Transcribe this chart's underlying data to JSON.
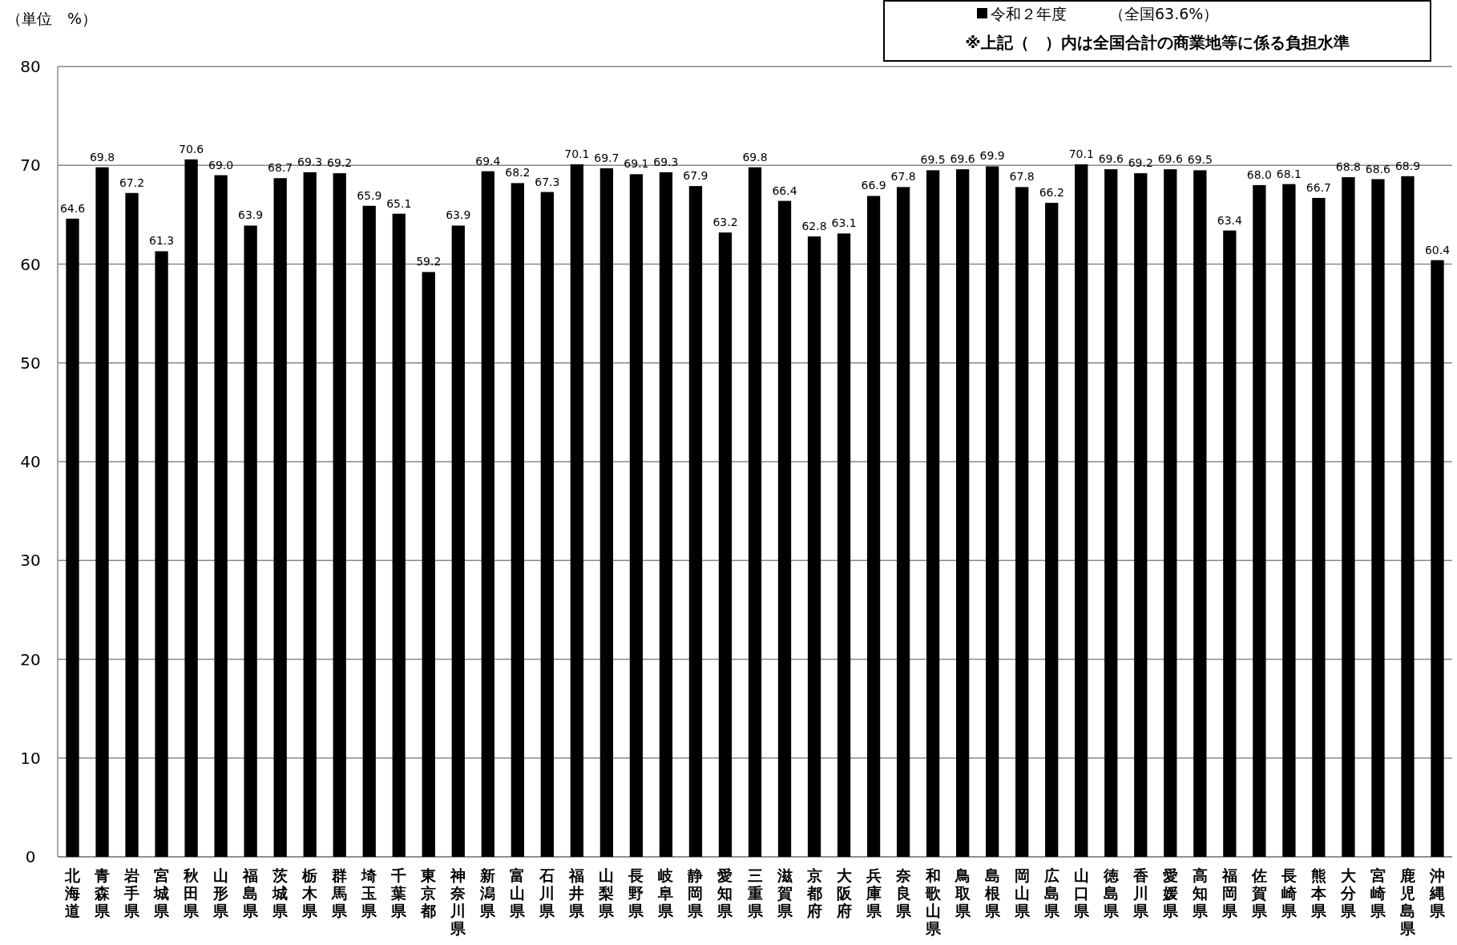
{
  "chart_data": {
    "type": "bar",
    "ylabel": "（単位　%）",
    "categories": [
      "北海道",
      "青森県",
      "岩手県",
      "宮城県",
      "秋田県",
      "山形県",
      "福島県",
      "茨城県",
      "栃木県",
      "群馬県",
      "埼玉県",
      "千葉県",
      "東京都",
      "神奈川県",
      "新潟県",
      "富山県",
      "石川県",
      "福井県",
      "山梨県",
      "長野県",
      "岐阜県",
      "静岡県",
      "愛知県",
      "三重県",
      "滋賀県",
      "京都府",
      "大阪府",
      "兵庫県",
      "奈良県",
      "和歌山県",
      "鳥取県",
      "島根県",
      "岡山県",
      "広島県",
      "山口県",
      "徳島県",
      "香川県",
      "愛媛県",
      "高知県",
      "福岡県",
      "佐賀県",
      "長崎県",
      "熊本県",
      "大分県",
      "宮崎県",
      "鹿児島県",
      "沖縄県"
    ],
    "series": [
      {
        "name": "令和２年度",
        "color": "#000000",
        "values": [
          64.6,
          69.8,
          67.2,
          61.3,
          70.6,
          69.0,
          63.9,
          68.7,
          69.3,
          69.2,
          65.9,
          65.1,
          59.2,
          63.9,
          69.4,
          68.2,
          67.3,
          70.1,
          69.7,
          69.1,
          69.3,
          67.9,
          63.2,
          69.8,
          66.4,
          62.8,
          63.1,
          66.9,
          67.8,
          69.5,
          69.6,
          69.9,
          67.8,
          66.2,
          70.1,
          69.6,
          69.2,
          69.6,
          69.5,
          63.4,
          68.0,
          68.1,
          66.7,
          68.8,
          68.6,
          68.9,
          60.4
        ],
        "value_labels": [
          "64.6",
          "69.8",
          "67.2",
          "61.3",
          "70.6",
          "69.0",
          "63.9",
          "68.7",
          "69.3",
          "69.2",
          "65.9",
          "65.1",
          "59.2",
          "63.9",
          "69.4",
          "68.2",
          "67.3",
          "70.1",
          "69.7",
          "69.1",
          "69.3",
          "67.9",
          "63.2",
          "69.8",
          "66.4",
          "62.8",
          "63.1",
          "66.9",
          "67.8",
          "69.5",
          "69.6",
          "69.9",
          "67.8",
          "66.2",
          "70.1",
          "69.6",
          "69.2",
          "69.6",
          "69.5",
          "63.4",
          "68.0",
          "68.1",
          "66.7",
          "68.8",
          "68.6",
          "68.9",
          "60.4"
        ]
      }
    ],
    "ylim": [
      0,
      80
    ],
    "yticks": [
      0,
      10,
      20,
      30,
      40,
      50,
      60,
      70,
      80
    ],
    "grid": "y",
    "legend": "top right",
    "annotations": [
      "（全国63.6%）",
      "※上記（　）内は全国合計の商業地等に係る負担水準"
    ]
  }
}
